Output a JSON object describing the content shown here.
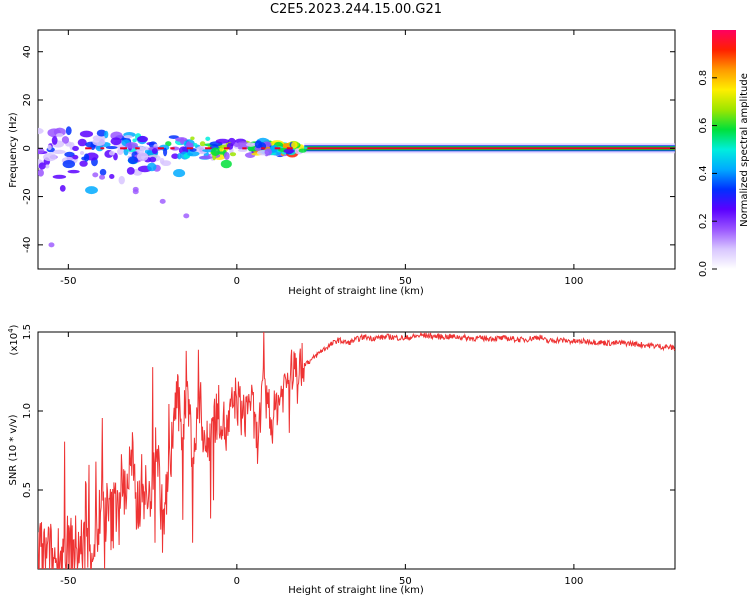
{
  "title": "C2E5.2023.244.15.00.G21",
  "colors": {
    "snr_line": "#ee3333",
    "ridge_core": "#e8002a",
    "ridge_mid": "#00dd33",
    "ridge_edge": "#1133ee",
    "scatter": "#7a22ff"
  },
  "chart_data": [
    {
      "type": "heatmap",
      "xlabel": "Height of straight line (km)",
      "ylabel": "Frequency (Hz)",
      "xlim": [
        -59,
        130
      ],
      "ylim": [
        -50,
        49
      ],
      "xticks": [
        -50,
        0,
        50,
        100
      ],
      "xtick_labels": [
        "-50",
        "0",
        "50",
        "100"
      ],
      "yticks": [
        -40,
        -20,
        0,
        20,
        40
      ],
      "ytick_labels": [
        "-40",
        "-20",
        "0",
        "20",
        "40"
      ],
      "colorbar": {
        "label": "Normalized spectral amplitude",
        "range": [
          0,
          1
        ],
        "ticks": [
          0,
          0.2,
          0.4,
          0.6,
          0.8
        ],
        "tick_labels": [
          "0.0",
          "0.2",
          "0.4",
          "0.6",
          "0.8"
        ],
        "colormap": [
          "#ffffff",
          "#d8c6ff",
          "#9a55ff",
          "#5a00ff",
          "#0030ff",
          "#00aaff",
          "#00eedd",
          "#00e03a",
          "#9ee600",
          "#ffee00",
          "#ff9a00",
          "#ff2000",
          "#ff0060"
        ]
      },
      "description_values": {
        "ridge_frequency_hz": 0,
        "ridge_start_km": 20,
        "noise_region_km": [
          -59,
          20
        ],
        "noise_spread_hz": [
          -20,
          8
        ]
      }
    },
    {
      "type": "line",
      "xlabel": "Height of straight line (km)",
      "ylabel": "SNR (10 * v/v)",
      "y_scale_label": "(x10",
      "y_scale_exponent": "4",
      "y_scale_suffix": ")",
      "xlim": [
        -59,
        130
      ],
      "ylim": [
        0,
        1.5
      ],
      "xticks": [
        -50,
        0,
        50,
        100
      ],
      "xtick_labels": [
        "-50",
        "0",
        "50",
        "100"
      ],
      "yticks": [
        0.5,
        1.0,
        1.5
      ],
      "ytick_labels": [
        "0.5",
        "1.0",
        "1.5"
      ],
      "x": [
        -59,
        -55,
        -50,
        -45,
        -42,
        -40,
        -37,
        -35,
        -33,
        -31,
        -30,
        -28,
        -26,
        -24,
        -22,
        -20,
        -18,
        -16,
        -15,
        -13,
        -11,
        -9,
        -7,
        -5,
        -3,
        -1,
        0,
        2,
        4,
        6,
        8,
        10,
        12,
        14,
        16,
        18,
        20,
        22,
        25,
        28,
        30,
        33,
        35,
        38,
        40,
        45,
        50,
        55,
        60,
        65,
        70,
        75,
        80,
        85,
        90,
        92,
        95,
        100,
        105,
        110,
        115,
        120,
        125,
        130
      ],
      "values": [
        0.08,
        0.05,
        0.1,
        0.13,
        0.18,
        0.4,
        0.3,
        0.55,
        0.5,
        0.7,
        0.35,
        0.55,
        0.4,
        0.85,
        0.28,
        0.6,
        1.1,
        0.85,
        1.2,
        0.7,
        1.05,
        0.75,
        0.95,
        1.0,
        0.85,
        1.05,
        1.08,
        0.95,
        1.1,
        0.8,
        1.15,
        0.9,
        1.05,
        1.15,
        1.25,
        1.28,
        1.3,
        1.32,
        1.38,
        1.42,
        1.45,
        1.43,
        1.45,
        1.47,
        1.46,
        1.47,
        1.46,
        1.48,
        1.47,
        1.47,
        1.46,
        1.46,
        1.46,
        1.45,
        1.47,
        1.44,
        1.45,
        1.44,
        1.44,
        1.43,
        1.43,
        1.42,
        1.41,
        1.4
      ]
    }
  ]
}
